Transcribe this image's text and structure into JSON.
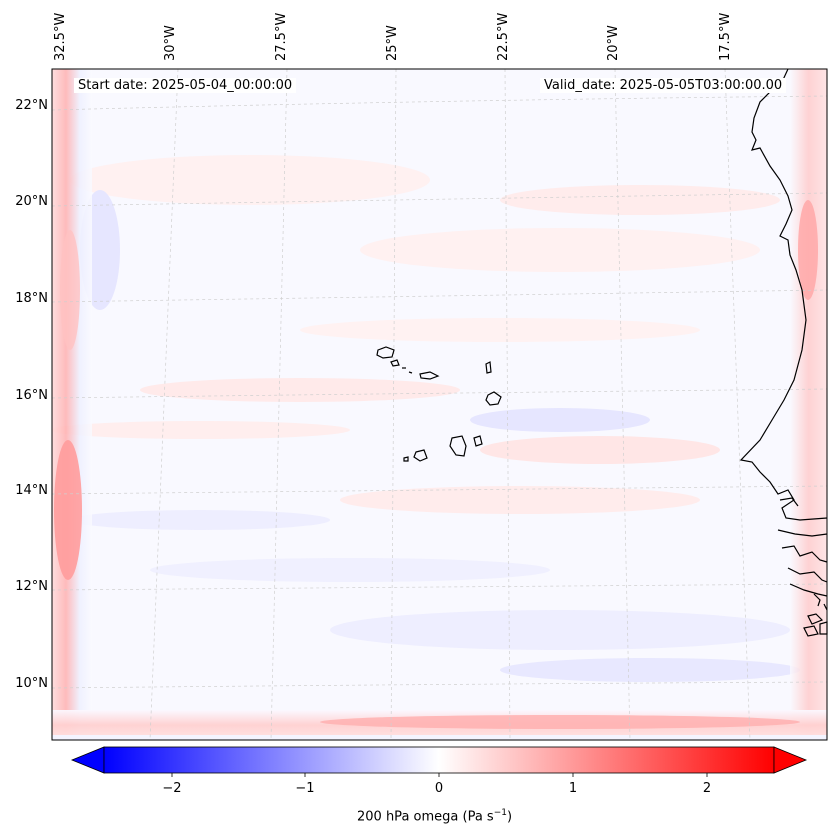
{
  "map": {
    "start_label": "Start date: 2025-05-04_00:00:00",
    "valid_label": "Valid_date: 2025-05-05T03:00:00.00",
    "lon_labels": [
      "32.5°W",
      "30°W",
      "27.5°W",
      "25°W",
      "22.5°W",
      "20°W",
      "17.5°W"
    ],
    "lat_labels": [
      "22°N",
      "20°N",
      "18°N",
      "16°N",
      "14°N",
      "12°N",
      "10°N"
    ],
    "field": "omega",
    "level": "200 hPa",
    "colormap": "bwr",
    "region": "Cape Verde Islands and West African coast"
  },
  "colorbar": {
    "label_prefix": "200 hPa omega (Pa s",
    "label_exp": "−1",
    "label_suffix": ")",
    "ticks": [
      "−2",
      "−1",
      "0",
      "1",
      "2"
    ],
    "tick_values": [
      -2,
      -1,
      0,
      1,
      2
    ],
    "range": [
      -2.5,
      2.5
    ],
    "color_low": "#0000ff",
    "color_mid": "#ffffff",
    "color_high": "#ff0000"
  }
}
